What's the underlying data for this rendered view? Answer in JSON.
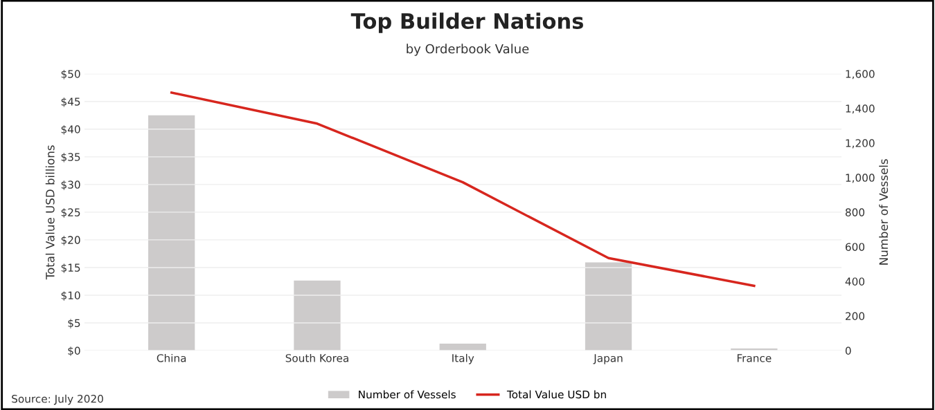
{
  "chart_data": {
    "type": "bar",
    "title": "Top Builder Nations",
    "subtitle": "by Orderbook Value",
    "ylabel": "Total Value USD billions",
    "y2label": "Number of Vessels",
    "categories": [
      "China",
      "South Korea",
      "Italy",
      "Japan",
      "France"
    ],
    "series": [
      {
        "name": "Number of Vessels",
        "axis": "y2",
        "color": "#cdcbcb",
        "values": [
          1360,
          405,
          40,
          510,
          12
        ]
      },
      {
        "name": "Total Value USD bn",
        "type": "line",
        "axis": "y",
        "color": "#d7261e",
        "values": [
          46.6,
          41.0,
          30.4,
          16.7,
          11.7
        ]
      }
    ],
    "ylim": [
      0,
      50
    ],
    "yticks": [
      {
        "value": 0,
        "label": "$0"
      },
      {
        "value": 5,
        "label": "$5"
      },
      {
        "value": 10,
        "label": "$10"
      },
      {
        "value": 15,
        "label": "$15"
      },
      {
        "value": 20,
        "label": "$20"
      },
      {
        "value": 25,
        "label": "$25"
      },
      {
        "value": 30,
        "label": "$30"
      },
      {
        "value": 35,
        "label": "$35"
      },
      {
        "value": 40,
        "label": "$40"
      },
      {
        "value": 45,
        "label": "$45"
      },
      {
        "value": 50,
        "label": "$50"
      }
    ],
    "y2lim": [
      0,
      1600
    ],
    "y2ticks": [
      0,
      {
        "value": 200,
        "label": "200"
      },
      {
        "value": 400,
        "label": "400"
      },
      {
        "value": 600,
        "label": "600"
      },
      {
        "value": 800,
        "label": "800"
      },
      {
        "value": 1000,
        "label": "1,000"
      },
      {
        "value": 1200,
        "label": "1,200"
      },
      {
        "value": 1400,
        "label": "1,400"
      },
      {
        "value": 1600,
        "label": "1,600"
      }
    ],
    "grid": "y",
    "legend": "bottom",
    "marker": "none",
    "line_style": "solid",
    "annotations": [
      "Source: July 2020"
    ]
  }
}
